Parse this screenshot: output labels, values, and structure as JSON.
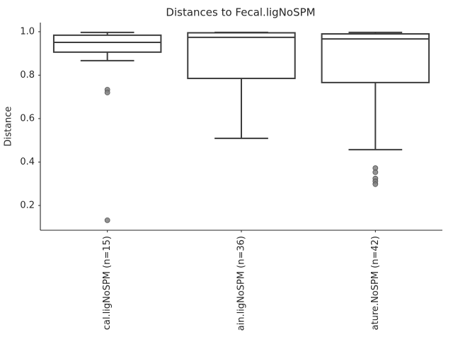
{
  "chart_data": {
    "type": "box",
    "title": "Distances to Fecal.ligNoSPM",
    "y_label": "Distance",
    "categories": [
      "cal.ligNoSPM (n=15)",
      "ain.ligNoSPM (n=36)",
      "ature.NoSPM (n=42)"
    ],
    "boxes": [
      {
        "whislo": 0.867,
        "q1": 0.906,
        "med": 0.951,
        "q3": 0.984,
        "whishi": 0.997,
        "fliers": [
          0.733,
          0.72,
          0.132
        ]
      },
      {
        "whislo": 0.509,
        "q1": 0.785,
        "med": 0.974,
        "q3": 0.995,
        "whishi": 0.997,
        "fliers": []
      },
      {
        "whislo": 0.457,
        "q1": 0.766,
        "med": 0.967,
        "q3": 0.99,
        "whishi": 0.997,
        "fliers": [
          0.372,
          0.353,
          0.324,
          0.311,
          0.298
        ]
      }
    ],
    "box_color": "#ffffff",
    "edge_color": "#3d3d3d",
    "flier_color": "#7f7f7f",
    "ylim": [
      0.086,
      1.042
    ],
    "yticks": [
      0.2,
      0.4,
      0.6,
      0.8,
      {
        "value": 1,
        "label": "1.0"
      }
    ],
    "grid": false
  }
}
